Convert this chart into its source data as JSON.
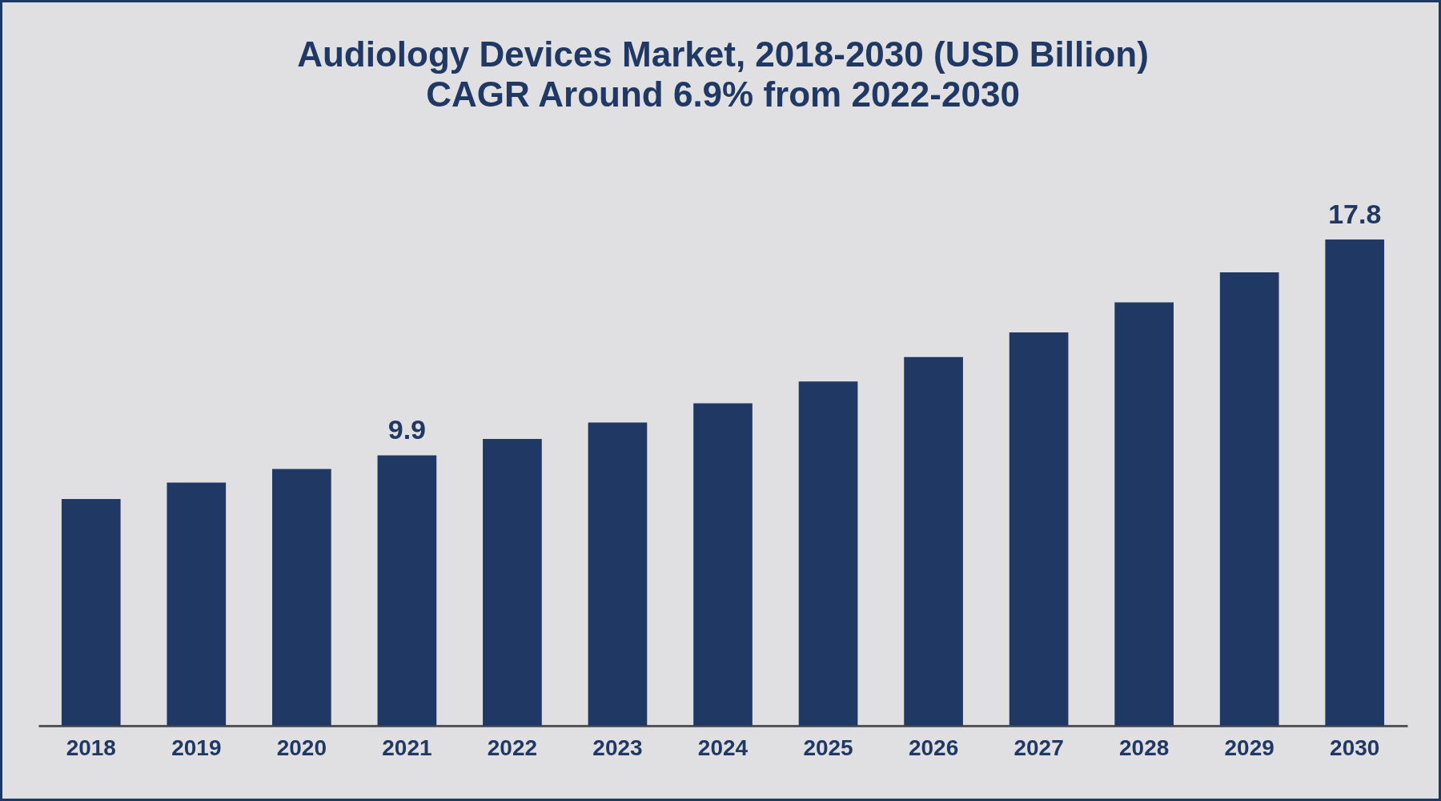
{
  "chart_data": {
    "type": "bar",
    "title": "Audiology Devices Market, 2018-2030 (USD Billion)",
    "subtitle": "CAGR Around 6.9% from 2022-2030",
    "categories": [
      "2018",
      "2019",
      "2020",
      "2021",
      "2022",
      "2023",
      "2024",
      "2025",
      "2026",
      "2027",
      "2028",
      "2029",
      "2030"
    ],
    "values": [
      8.3,
      8.9,
      9.4,
      9.9,
      10.5,
      11.1,
      11.8,
      12.6,
      13.5,
      14.4,
      15.5,
      16.6,
      17.8
    ],
    "value_labels": [
      null,
      null,
      null,
      "9.9",
      null,
      null,
      null,
      null,
      null,
      null,
      null,
      null,
      "17.8"
    ],
    "color": "#203864"
  }
}
